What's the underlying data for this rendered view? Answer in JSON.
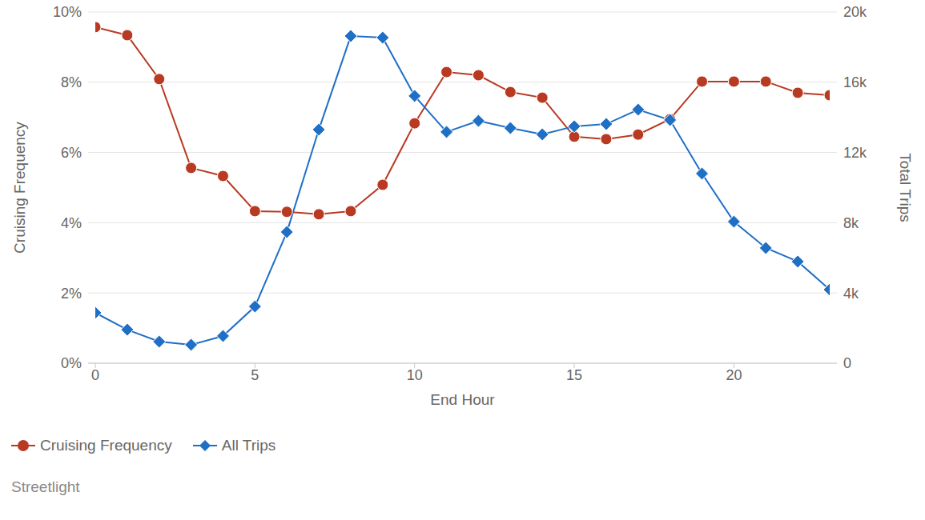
{
  "chart_data": {
    "type": "line",
    "source": "Streetlight",
    "x_label": "End Hour",
    "y_label": "Cruising Frequency",
    "y2_label": "Total Trips",
    "x": [
      0,
      1,
      2,
      3,
      4,
      5,
      6,
      7,
      8,
      9,
      10,
      11,
      12,
      13,
      14,
      15,
      16,
      17,
      18,
      19,
      20,
      21,
      22,
      23
    ],
    "xlim": [
      0,
      23
    ],
    "xticks": [
      0,
      5,
      10,
      15,
      20
    ],
    "ylim": [
      0,
      10
    ],
    "yticks": [
      {
        "value": 0,
        "label": "0%"
      },
      {
        "value": 2,
        "label": "2%"
      },
      {
        "value": 4,
        "label": "4%"
      },
      {
        "value": 6,
        "label": "6%"
      },
      {
        "value": 8,
        "label": "8%"
      },
      {
        "value": 10,
        "label": "10%"
      }
    ],
    "y2lim": [
      0,
      20000
    ],
    "y2ticks": [
      0,
      {
        "value": 4000,
        "label": "4k"
      },
      {
        "value": 8000,
        "label": "8k"
      },
      {
        "value": 12000,
        "label": "12k"
      },
      {
        "value": 16000,
        "label": "16k"
      },
      {
        "value": 20000,
        "label": "20k"
      }
    ],
    "grid": true,
    "legend": "bottom",
    "series": [
      {
        "name": "Cruising Frequency",
        "color": "#b83a22",
        "marker": "circle",
        "values": [
          9.57,
          9.34,
          8.09,
          5.56,
          5.33,
          4.33,
          4.31,
          4.24,
          4.33,
          5.08,
          6.83,
          8.29,
          8.2,
          7.72,
          7.56,
          6.45,
          6.38,
          6.51,
          6.95,
          8.02,
          8.02,
          8.02,
          7.7,
          7.63
        ]
      },
      {
        "name": "All Trips",
        "color": "#1f6fc5",
        "marker": "diamond",
        "axis": "y2",
        "values": [
          2870,
          1910,
          1230,
          1050,
          1550,
          3230,
          7470,
          13300,
          18630,
          18540,
          15220,
          13170,
          13800,
          13390,
          13030,
          13490,
          13620,
          14440,
          13850,
          10800,
          8060,
          6560,
          5790,
          4190
        ]
      }
    ]
  }
}
